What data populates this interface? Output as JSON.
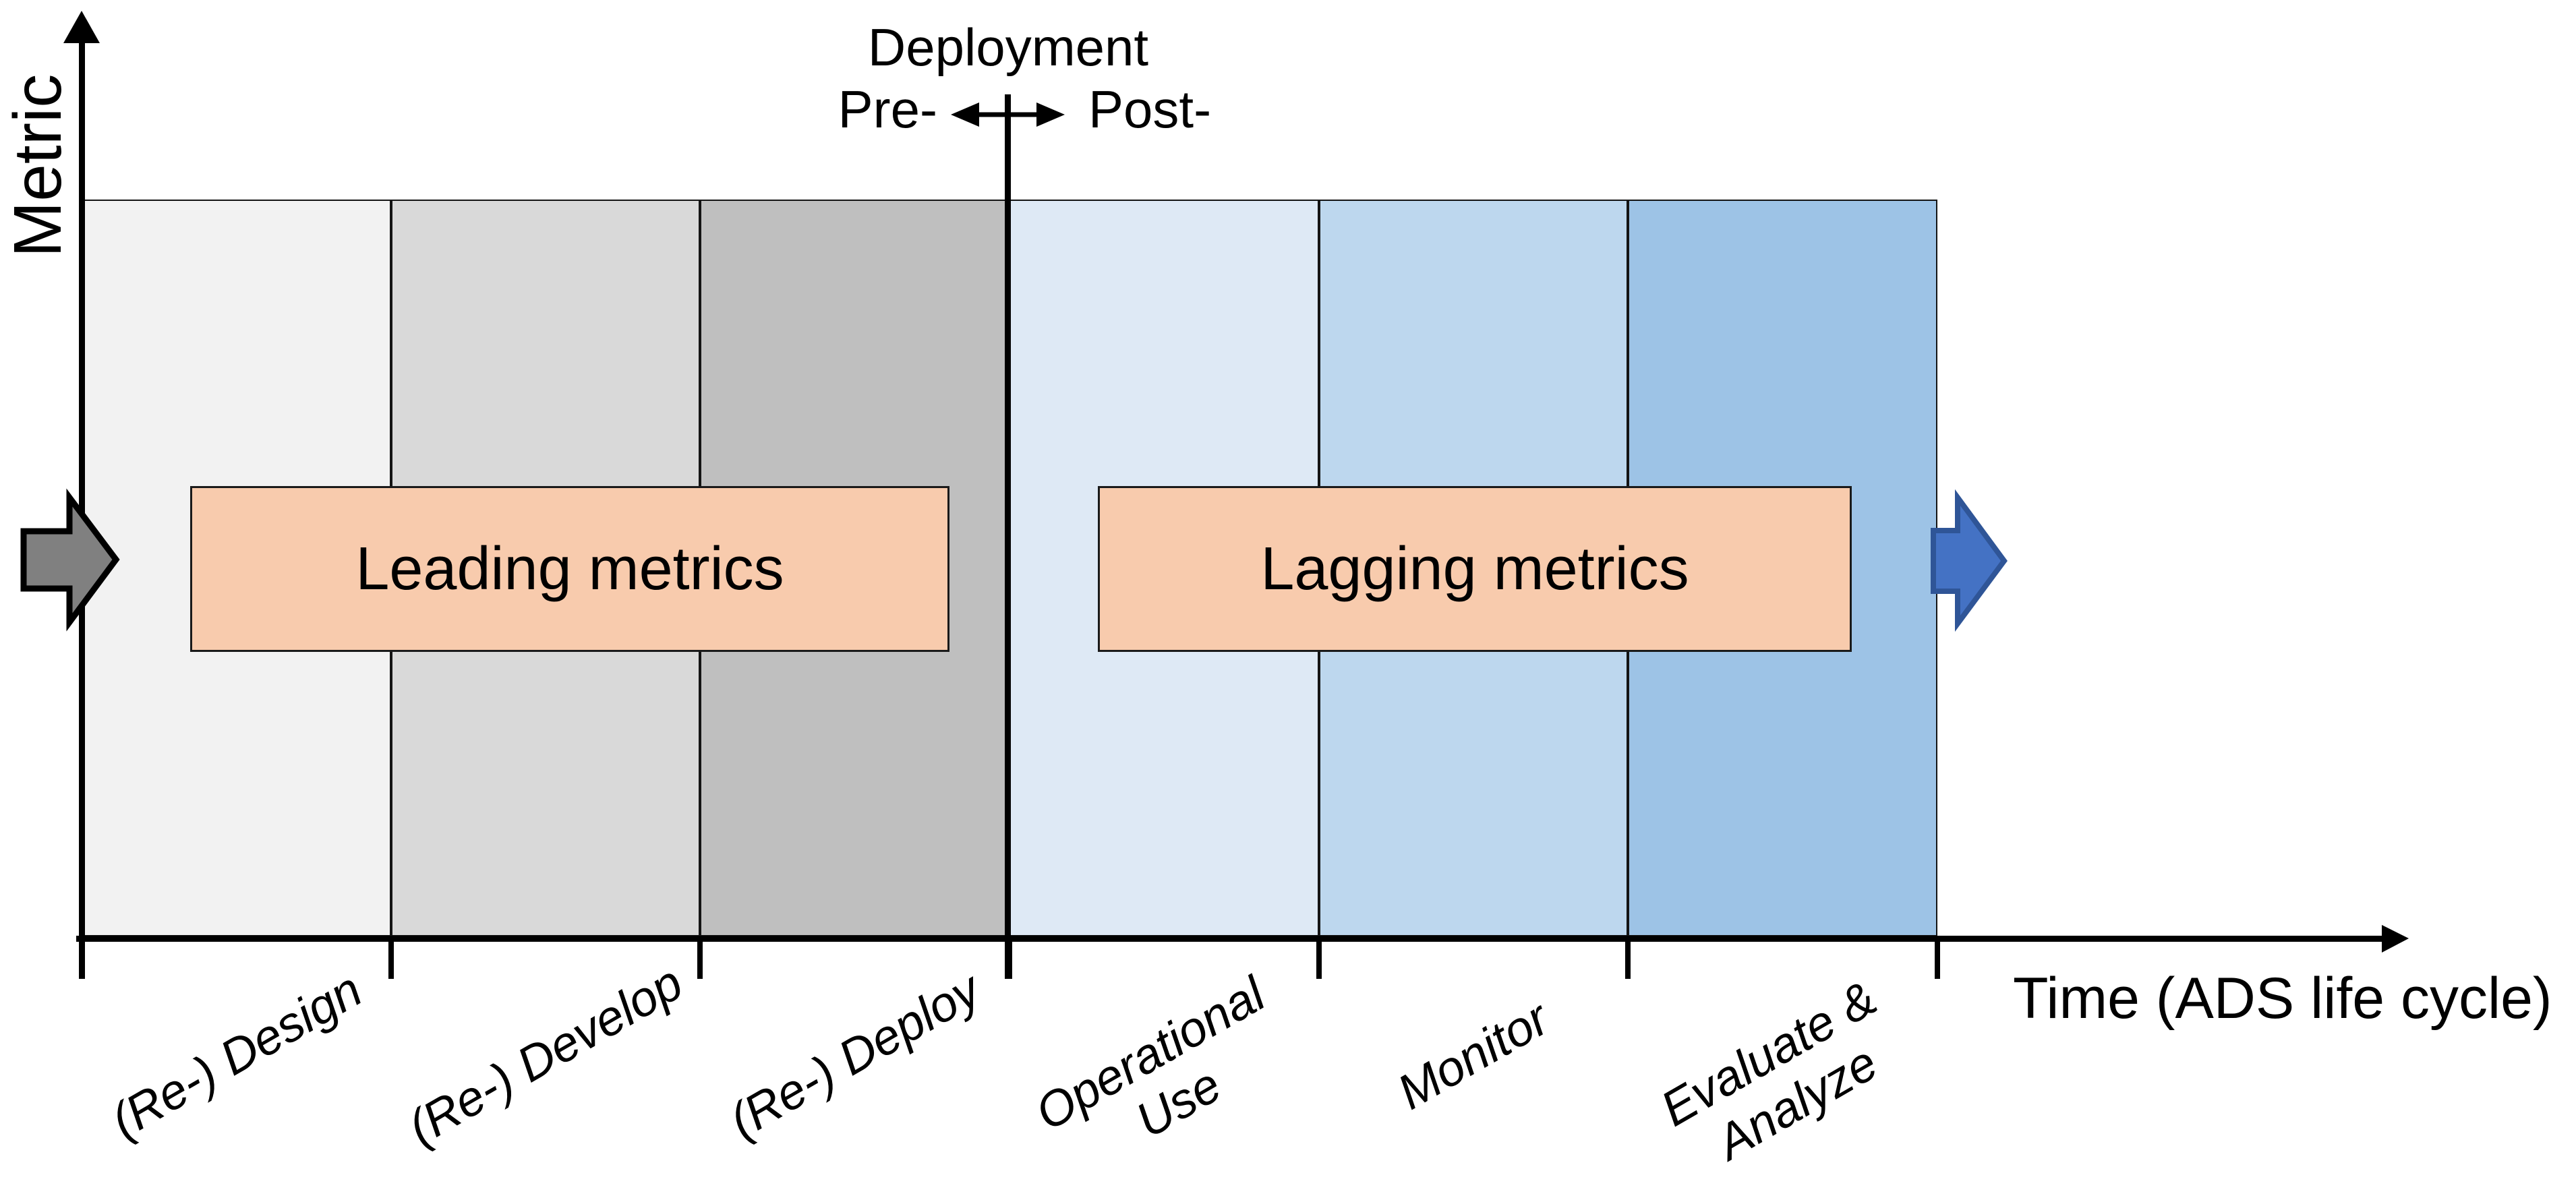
{
  "figure": {
    "y_axis": {
      "label": "Metric"
    },
    "x_axis": {
      "label": "Time (ADS life cycle)"
    },
    "deployment_marker": {
      "title": "Deployment",
      "pre_label": "Pre-",
      "post_label": "Post-"
    },
    "metric_boxes": [
      {
        "label": "Leading metrics",
        "fill": "#F8CBAD",
        "border": "#1a1a1a"
      },
      {
        "label": "Lagging metrics",
        "fill": "#F8CBAD",
        "border": "#1a1a1a"
      }
    ],
    "phases": [
      {
        "label_lines": [
          "(Re-) Design"
        ],
        "fill": "#F2F2F2",
        "stage": "pre-deployment"
      },
      {
        "label_lines": [
          "(Re-) Develop"
        ],
        "fill": "#D9D9D9",
        "stage": "pre-deployment"
      },
      {
        "label_lines": [
          "(Re-) Deploy"
        ],
        "fill": "#BFBFBF",
        "stage": "pre-deployment"
      },
      {
        "label_lines": [
          "Operational",
          "Use"
        ],
        "fill": "#DEE9F5",
        "stage": "post-deployment"
      },
      {
        "label_lines": [
          "Monitor"
        ],
        "fill": "#BDD7EE",
        "stage": "post-deployment"
      },
      {
        "label_lines": [
          "Evaluate &",
          "Analyze"
        ],
        "fill": "#9DC3E6",
        "stage": "post-deployment"
      }
    ],
    "flow_arrows": {
      "inflow": {
        "fill": "#808080",
        "stroke": "#000000"
      },
      "outflow": {
        "fill": "#4472C4",
        "stroke": "#2F5597"
      }
    },
    "line_color": "#000000"
  }
}
